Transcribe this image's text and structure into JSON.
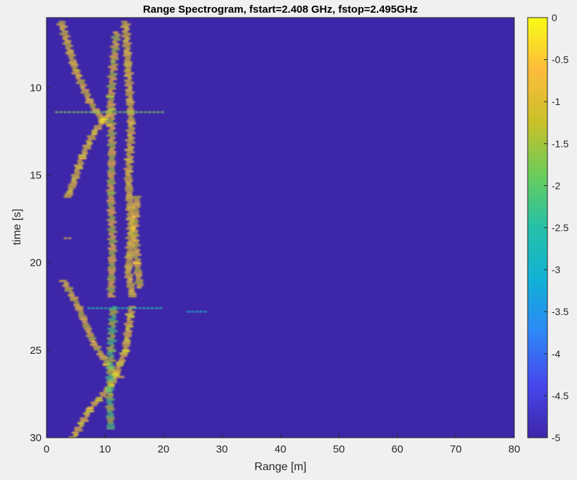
{
  "chart_data": {
    "type": "heatmap",
    "title": "Range Spectrogram, fstart=2.408 GHz, fstop=2.495GHz",
    "xlabel": "Range [m]",
    "ylabel": "time [s]",
    "xlim": [
      0,
      80
    ],
    "ylim": [
      6,
      30
    ],
    "y_direction": "reverse",
    "x_ticks": [
      0,
      10,
      20,
      30,
      40,
      50,
      60,
      70,
      80
    ],
    "x_tick_labels": [
      "0",
      "10",
      "20",
      "30",
      "40",
      "50",
      "60",
      "70",
      "80"
    ],
    "y_ticks": [
      10,
      15,
      20,
      25,
      30
    ],
    "y_tick_labels": [
      "10",
      "15",
      "20",
      "25",
      "30"
    ],
    "colorbar": {
      "limits": [
        -5,
        0
      ],
      "ticks": [
        0,
        -0.5,
        -1,
        -1.5,
        -2,
        -2.5,
        -3,
        -3.5,
        -4,
        -4.5,
        -5
      ],
      "tick_labels": [
        "0",
        "-0.5",
        "-1",
        "-1.5",
        "-2",
        "-2.5",
        "-3",
        "-3.5",
        "-4",
        "-4.5",
        "-5"
      ],
      "colormap": "parula",
      "colors": [
        "#3e26a8",
        "#4746eb",
        "#2e87f7",
        "#12b1d6",
        "#25c0a8",
        "#6acd5b",
        "#c8c129",
        "#fdbc3c",
        "#f9fb15"
      ]
    },
    "background_color": "#3e26a8",
    "grid": false,
    "traces": [
      {
        "points": [
          [
            2.5,
            6.2
          ],
          [
            5.0,
            9.0
          ],
          [
            7.5,
            10.8
          ],
          [
            9.5,
            11.8
          ],
          [
            11.0,
            12.2
          ]
        ],
        "level": -0.5
      },
      {
        "points": [
          [
            11.0,
            11.2
          ],
          [
            8.0,
            12.6
          ],
          [
            6.0,
            14.0
          ],
          [
            4.5,
            15.5
          ],
          [
            3.5,
            16.3
          ]
        ],
        "level": -0.3
      },
      {
        "points": [
          [
            12.0,
            6.8
          ],
          [
            11.5,
            8.5
          ],
          [
            11.0,
            10.5
          ],
          [
            11.2,
            13.5
          ],
          [
            11.0,
            16.0
          ],
          [
            11.3,
            19.0
          ],
          [
            11.0,
            22.0
          ]
        ],
        "level": -0.8
      },
      {
        "points": [
          [
            13.5,
            6.2
          ],
          [
            14.0,
            9.0
          ],
          [
            14.5,
            12.0
          ],
          [
            14.0,
            15.0
          ],
          [
            14.5,
            18.0
          ],
          [
            14.0,
            20.5
          ],
          [
            14.8,
            22.0
          ]
        ],
        "level": -0.4
      },
      {
        "points": [
          [
            15.5,
            16.2
          ],
          [
            15.0,
            18.0
          ],
          [
            15.5,
            20.0
          ],
          [
            16.0,
            21.5
          ]
        ],
        "level": -0.6
      },
      {
        "points": [
          [
            3.0,
            21.0
          ],
          [
            5.5,
            22.5
          ],
          [
            8.0,
            24.5
          ],
          [
            10.5,
            25.8
          ],
          [
            12.5,
            26.5
          ]
        ],
        "level": -0.6
      },
      {
        "points": [
          [
            14.5,
            22.5
          ],
          [
            13.5,
            25.0
          ],
          [
            11.0,
            27.0
          ],
          [
            7.5,
            28.3
          ],
          [
            4.5,
            30.0
          ]
        ],
        "level": -0.2
      },
      {
        "points": [
          [
            11.5,
            22.5
          ],
          [
            11.0,
            25.0
          ],
          [
            10.8,
            27.5
          ],
          [
            11.0,
            29.5
          ]
        ],
        "level": -1.5
      },
      {
        "points": [
          [
            3.0,
            18.6
          ],
          [
            4.0,
            18.6
          ]
        ],
        "level": -1.0
      },
      {
        "points": [
          [
            1.5,
            11.4
          ],
          [
            20.0,
            11.4
          ]
        ],
        "level": -1.8
      },
      {
        "points": [
          [
            7.0,
            22.6
          ],
          [
            20.0,
            22.6
          ]
        ],
        "level": -2.5
      },
      {
        "points": [
          [
            24.0,
            22.8
          ],
          [
            27.5,
            22.8
          ]
        ],
        "level": -3.0
      }
    ]
  }
}
